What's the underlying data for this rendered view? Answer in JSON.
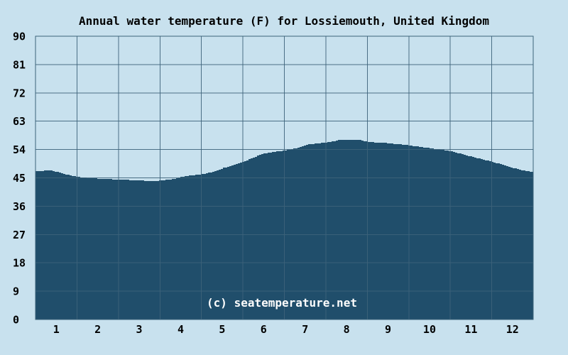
{
  "chart_data": {
    "type": "area",
    "title": "Annual water temperature (F) for Lossiemouth, United Kingdom",
    "watermark": "(c) seatemperature.net",
    "xlabel": "",
    "ylabel": "",
    "x_tick_labels": [
      "1",
      "2",
      "3",
      "4",
      "5",
      "6",
      "7",
      "8",
      "9",
      "10",
      "11",
      "12"
    ],
    "y_tick_labels": [
      "0",
      "9",
      "18",
      "27",
      "36",
      "45",
      "54",
      "63",
      "72",
      "81",
      "90"
    ],
    "ylim": [
      0,
      90
    ],
    "xlim_months": [
      0,
      12
    ],
    "grid": true,
    "legend_position": "none",
    "categories": [
      "1",
      "2",
      "3",
      "4",
      "5",
      "6",
      "7",
      "8",
      "9",
      "10",
      "11",
      "12"
    ],
    "series": [
      {
        "name": "Water temperature (F)",
        "values": [
          46.9,
          44.8,
          44.2,
          45.3,
          48.1,
          52.8,
          55.5,
          57.1,
          56.0,
          54.4,
          51.7,
          48.1
        ]
      }
    ],
    "curve_points": [
      [
        0.0,
        47.1
      ],
      [
        0.2,
        47.3
      ],
      [
        0.35,
        47.4
      ],
      [
        0.5,
        46.9
      ],
      [
        0.75,
        46.0
      ],
      [
        1.0,
        45.3
      ],
      [
        1.3,
        44.9
      ],
      [
        1.6,
        44.7
      ],
      [
        2.0,
        44.4
      ],
      [
        2.3,
        44.3
      ],
      [
        2.5,
        44.2
      ],
      [
        2.65,
        44.0
      ],
      [
        2.8,
        43.9
      ],
      [
        3.0,
        44.2
      ],
      [
        3.3,
        44.6
      ],
      [
        3.5,
        45.3
      ],
      [
        3.75,
        45.8
      ],
      [
        4.0,
        46.2
      ],
      [
        4.3,
        47.0
      ],
      [
        4.5,
        48.1
      ],
      [
        4.75,
        49.0
      ],
      [
        5.0,
        50.1
      ],
      [
        5.3,
        51.8
      ],
      [
        5.5,
        52.8
      ],
      [
        5.75,
        53.3
      ],
      [
        6.0,
        53.7
      ],
      [
        6.3,
        54.5
      ],
      [
        6.5,
        55.5
      ],
      [
        6.75,
        55.9
      ],
      [
        7.0,
        56.2
      ],
      [
        7.3,
        57.0
      ],
      [
        7.5,
        57.1
      ],
      [
        7.8,
        57.1
      ],
      [
        8.0,
        56.4
      ],
      [
        8.5,
        56.0
      ],
      [
        9.0,
        55.3
      ],
      [
        9.5,
        54.4
      ],
      [
        10.0,
        53.5
      ],
      [
        10.5,
        51.7
      ],
      [
        11.0,
        50.1
      ],
      [
        11.5,
        48.1
      ],
      [
        11.8,
        47.2
      ],
      [
        12.0,
        46.9
      ]
    ],
    "colors": {
      "background": "#c8e1ee",
      "area": "#204e6b",
      "gridline": "#3d637a",
      "border": "#3d637a",
      "text": "#000000",
      "watermark": "#fdfdfd"
    }
  }
}
